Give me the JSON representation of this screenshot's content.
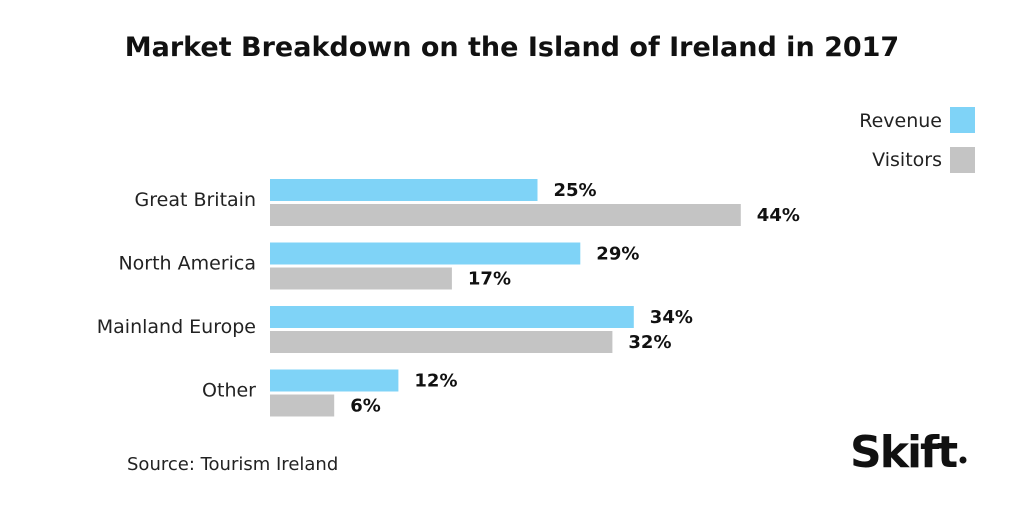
{
  "chart_data": {
    "type": "bar",
    "orientation": "horizontal",
    "title": "Market Breakdown on the Island of Ireland in 2017",
    "categories": [
      "Great Britain",
      "North America",
      "Mainland Europe",
      "Other"
    ],
    "series": [
      {
        "name": "Revenue",
        "color": "#7fd3f7",
        "values": [
          25,
          29,
          34,
          12
        ]
      },
      {
        "name": "Visitors",
        "color": "#c4c4c4",
        "values": [
          44,
          17,
          32,
          6
        ]
      }
    ],
    "value_suffix": "%",
    "xlim": [
      0,
      44
    ],
    "grid": false,
    "legend": "top-right"
  },
  "source": "Source: Tourism Ireland",
  "logo": {
    "text": "Skift"
  }
}
